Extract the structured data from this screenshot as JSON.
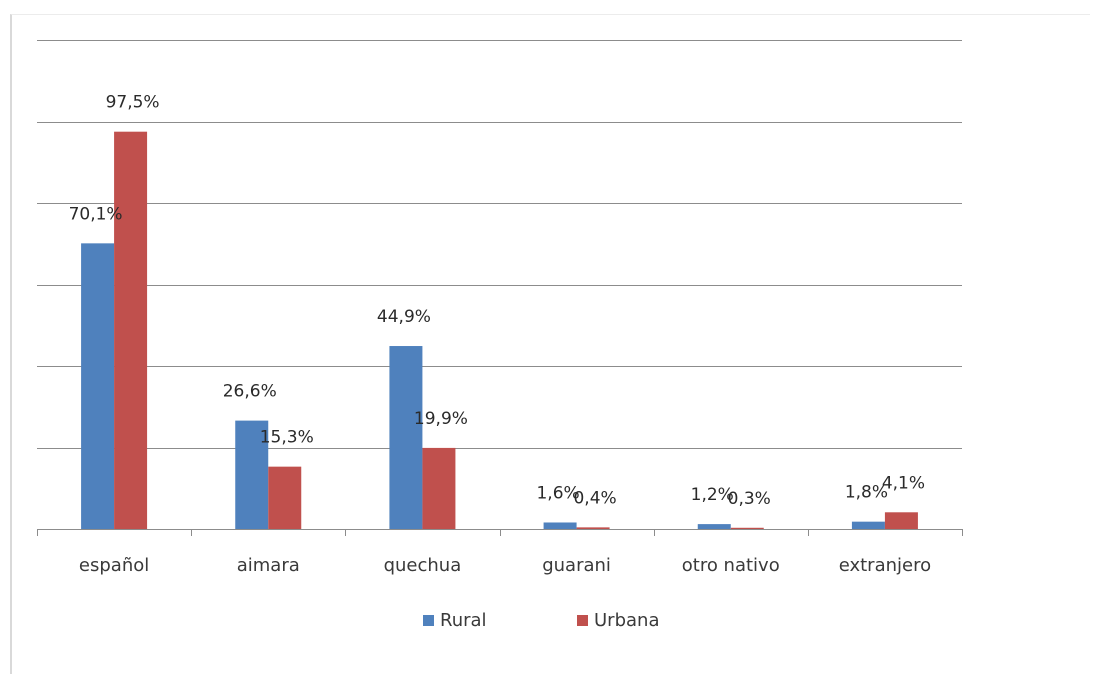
{
  "chart_data": {
    "type": "bar",
    "categories": [
      "español",
      "aimara",
      "quechua",
      "guarani",
      "otro nativo",
      "extranjero"
    ],
    "series": [
      {
        "name": "Rural",
        "color": "#4f81bd",
        "values": [
          70.1,
          26.6,
          44.9,
          1.6,
          1.2,
          1.8
        ],
        "labels": [
          "70,1%",
          "26,6%",
          "44,9%",
          "1,6%",
          "1,2%",
          "1,8%"
        ]
      },
      {
        "name": "Urbana",
        "color": "#c0504d",
        "values": [
          97.5,
          15.3,
          19.9,
          0.4,
          0.3,
          4.1
        ],
        "labels": [
          "97,5%",
          "15,3%",
          "19,9%",
          "0,4%",
          "0,3%",
          "4,1%"
        ]
      }
    ],
    "title": "",
    "xlabel": "",
    "ylabel": "",
    "ylim": [
      0,
      120
    ],
    "gridlines": true,
    "y_tick_labels_visible": false,
    "legend_position": "bottom"
  }
}
